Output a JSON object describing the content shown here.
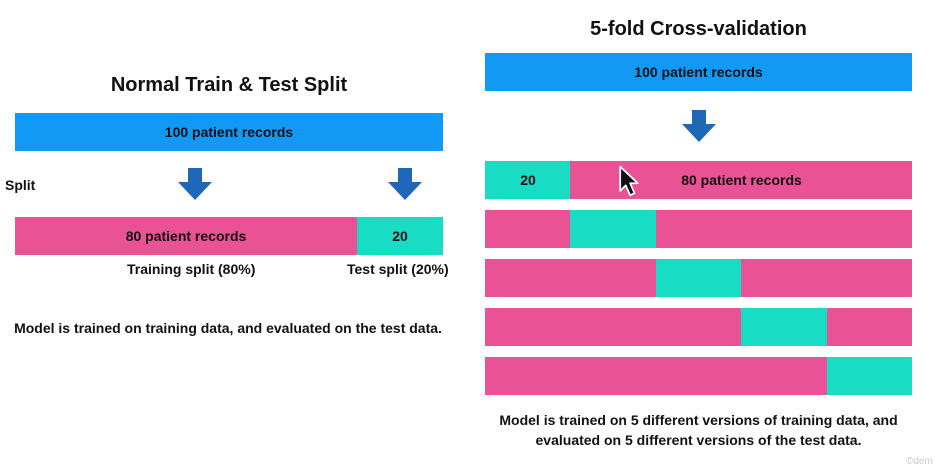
{
  "colors": {
    "blue": "#1199f5",
    "pink": "#ea5296",
    "teal": "#19dcc4",
    "arrow": "#1f67b7"
  },
  "left": {
    "title": "Normal Train & Test Split",
    "total_bar_label": "100 patient records",
    "split_label": "Split",
    "train_bar_label": "80 patient records",
    "test_bar_label": "20",
    "train_caption": "Training split (80%)",
    "test_caption": "Test split (20%)",
    "train_fraction": 0.8,
    "test_fraction": 0.2,
    "description": "Model is trained on training data, and evaluated on the test data."
  },
  "right": {
    "title": "5-fold Cross-validation",
    "total_bar_label": "100 patient records",
    "fold_count": 5,
    "fold1_test_label": "20",
    "fold1_train_label": "80 patient records",
    "folds": [
      {
        "test_fold_index": 0
      },
      {
        "test_fold_index": 1
      },
      {
        "test_fold_index": 2
      },
      {
        "test_fold_index": 3
      },
      {
        "test_fold_index": 4
      }
    ],
    "description": "Model is trained on 5 different versions of training data, and evaluated on 5 different versions of the test data."
  },
  "cursor_icon": "mouse-pointer-icon",
  "watermark": "©dem"
}
